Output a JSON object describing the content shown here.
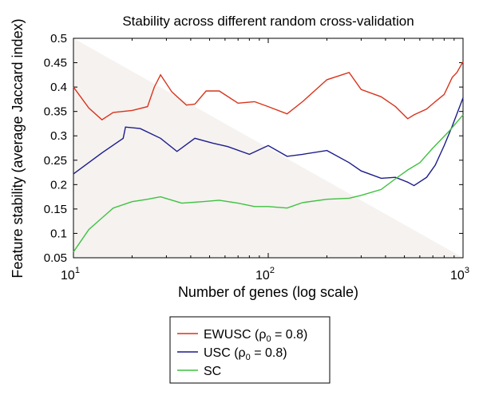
{
  "chart_data": {
    "type": "line",
    "title": "Stability across different random cross-validation",
    "xlabel": "Number of genes (log scale)",
    "ylabel": "Feature stability (average Jaccard index)",
    "xscale": "log",
    "xlim": [
      10,
      1000
    ],
    "ylim": [
      0.05,
      0.5
    ],
    "yticks": [
      "0.05",
      "0.1",
      "0.15",
      "0.2",
      "0.25",
      "0.3",
      "0.35",
      "0.4",
      "0.45",
      "0.5"
    ],
    "xticks": [
      {
        "value": 10,
        "base": "10",
        "exp": "1"
      },
      {
        "value": 100,
        "base": "10",
        "exp": "2"
      },
      {
        "value": 1000,
        "base": "10",
        "exp": "3"
      }
    ],
    "legend_position": "bottom-center",
    "series": [
      {
        "name": "EWUSC (ρ0 = 0.8)",
        "legend_main": "EWUSC (ρ",
        "legend_sub": "0",
        "legend_tail": " = 0.8)",
        "color": "#d9341c",
        "x": [
          10,
          12,
          14,
          16,
          20,
          24,
          26,
          28,
          32,
          38,
          42,
          48,
          56,
          70,
          85,
          100,
          125,
          150,
          200,
          260,
          300,
          380,
          450,
          520,
          560,
          650,
          720,
          800,
          880,
          930,
          1000
        ],
        "y": [
          0.4,
          0.357,
          0.333,
          0.348,
          0.352,
          0.36,
          0.4,
          0.425,
          0.39,
          0.363,
          0.365,
          0.392,
          0.392,
          0.367,
          0.37,
          0.36,
          0.345,
          0.37,
          0.415,
          0.43,
          0.395,
          0.38,
          0.36,
          0.335,
          0.343,
          0.355,
          0.37,
          0.385,
          0.42,
          0.43,
          0.452
        ]
      },
      {
        "name": "USC (ρ0 = 0.8)",
        "legend_main": "USC (ρ",
        "legend_sub": "0",
        "legend_tail": " = 0.8)",
        "color": "#1c1c8c",
        "x": [
          10,
          14,
          18,
          18.5,
          22,
          28,
          34,
          42,
          52,
          62,
          80,
          100,
          125,
          150,
          200,
          260,
          300,
          380,
          450,
          520,
          560,
          650,
          720,
          800,
          880,
          1000
        ],
        "y": [
          0.222,
          0.265,
          0.295,
          0.318,
          0.315,
          0.295,
          0.268,
          0.295,
          0.285,
          0.278,
          0.262,
          0.28,
          0.258,
          0.262,
          0.27,
          0.245,
          0.228,
          0.213,
          0.215,
          0.205,
          0.198,
          0.215,
          0.24,
          0.28,
          0.32,
          0.378
        ]
      },
      {
        "name": "SC",
        "legend_main": "SC",
        "legend_sub": "",
        "legend_tail": "",
        "color": "#3ec13e",
        "x": [
          10,
          12,
          16,
          20,
          24,
          28,
          36,
          46,
          56,
          70,
          85,
          100,
          125,
          150,
          200,
          260,
          300,
          380,
          450,
          520,
          600,
          700,
          850,
          1000
        ],
        "y": [
          0.062,
          0.108,
          0.152,
          0.165,
          0.17,
          0.175,
          0.162,
          0.165,
          0.168,
          0.162,
          0.155,
          0.155,
          0.152,
          0.163,
          0.17,
          0.172,
          0.178,
          0.19,
          0.212,
          0.23,
          0.245,
          0.275,
          0.31,
          0.343
        ]
      }
    ]
  }
}
